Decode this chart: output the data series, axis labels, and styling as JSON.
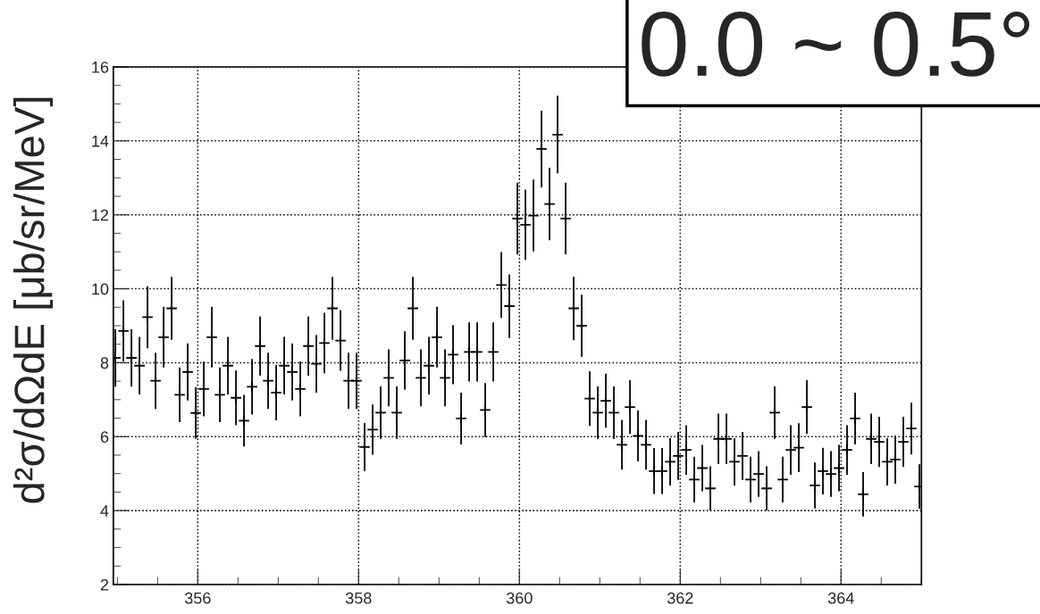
{
  "chart_data": {
    "type": "scatter",
    "ylabel": "d²σ/dΩdE [μb/sr/MeV]",
    "annotations": [
      "0.0 ~ 0.5°"
    ],
    "xlim": [
      354.95,
      365
    ],
    "xticks": [
      356,
      358,
      360,
      362,
      364
    ],
    "ylim": [
      2,
      16
    ],
    "yticks": [
      2,
      4,
      6,
      8,
      10,
      12,
      14,
      16
    ],
    "grid": true,
    "marker": "cross",
    "series": [
      {
        "color": "#000000",
        "x": [
          354.975,
          355.075,
          355.175,
          355.275,
          355.375,
          355.475,
          355.575,
          355.675,
          355.775,
          355.875,
          355.975,
          356.075,
          356.175,
          356.275,
          356.375,
          356.475,
          356.575,
          356.675,
          356.775,
          356.875,
          356.975,
          357.075,
          357.175,
          357.275,
          357.375,
          357.475,
          357.575,
          357.675,
          357.775,
          357.875,
          357.975,
          358.075,
          358.175,
          358.275,
          358.375,
          358.475,
          358.575,
          358.675,
          358.775,
          358.875,
          358.975,
          359.075,
          359.175,
          359.275,
          359.375,
          359.475,
          359.575,
          359.675,
          359.775,
          359.875,
          359.975,
          360.075,
          360.175,
          360.275,
          360.375,
          360.475,
          360.575,
          360.675,
          360.775,
          360.875,
          360.975,
          361.075,
          361.175,
          361.275,
          361.375,
          361.475,
          361.575,
          361.675,
          361.775,
          361.875,
          361.975,
          362.075,
          362.175,
          362.275,
          362.375,
          362.475,
          362.575,
          362.675,
          362.775,
          362.875,
          362.975,
          363.075,
          363.175,
          363.275,
          363.375,
          363.475,
          363.575,
          363.675,
          363.775,
          363.875,
          363.975,
          364.075,
          364.175,
          364.275,
          364.375,
          364.475,
          364.575,
          364.675,
          364.775,
          364.875,
          364.975
        ],
        "values": [
          8.13,
          8.86,
          8.13,
          7.92,
          9.23,
          7.51,
          8.69,
          9.47,
          7.13,
          7.75,
          6.64,
          7.29,
          8.69,
          7.13,
          7.92,
          7.05,
          6.43,
          7.35,
          8.45,
          7.51,
          7.19,
          7.92,
          7.75,
          7.29,
          8.45,
          7.97,
          8.53,
          9.47,
          8.6,
          7.51,
          7.51,
          5.72,
          6.19,
          6.65,
          7.59,
          6.65,
          8.06,
          9.47,
          7.59,
          7.92,
          8.69,
          7.59,
          8.22,
          6.49,
          8.29,
          8.29,
          6.72,
          8.29,
          10.1,
          9.53,
          11.9,
          11.73,
          11.98,
          13.78,
          12.29,
          14.17,
          11.9,
          9.47,
          9.0,
          7.03,
          6.65,
          6.97,
          6.65,
          5.78,
          6.8,
          6.02,
          5.78,
          5.07,
          5.07,
          5.32,
          5.48,
          5.64,
          4.84,
          5.15,
          4.6,
          5.94,
          5.94,
          5.32,
          5.48,
          4.84,
          4.99,
          4.6,
          6.65,
          4.84,
          5.64,
          5.7,
          6.8,
          4.68,
          5.07,
          4.99,
          5.15,
          5.64,
          6.49,
          4.44,
          5.94,
          5.86,
          5.32,
          5.38,
          5.86,
          6.22,
          4.65
        ],
        "errors": [
          0.78,
          0.83,
          0.78,
          0.78,
          0.84,
          0.76,
          0.82,
          0.85,
          0.74,
          0.77,
          0.7,
          0.74,
          0.82,
          0.74,
          0.78,
          0.74,
          0.7,
          0.75,
          0.8,
          0.76,
          0.75,
          0.78,
          0.77,
          0.74,
          0.8,
          0.78,
          0.82,
          0.85,
          0.82,
          0.76,
          0.76,
          0.65,
          0.68,
          0.71,
          0.77,
          0.71,
          0.79,
          0.85,
          0.77,
          0.78,
          0.82,
          0.77,
          0.8,
          0.7,
          0.8,
          0.8,
          0.73,
          0.8,
          0.89,
          0.86,
          0.97,
          0.95,
          0.97,
          1.04,
          0.98,
          1.05,
          0.97,
          0.86,
          0.84,
          0.74,
          0.71,
          0.73,
          0.71,
          0.67,
          0.73,
          0.69,
          0.67,
          0.62,
          0.62,
          0.64,
          0.65,
          0.67,
          0.62,
          0.63,
          0.6,
          0.68,
          0.68,
          0.64,
          0.65,
          0.62,
          0.62,
          0.6,
          0.71,
          0.62,
          0.67,
          0.66,
          0.73,
          0.62,
          0.63,
          0.62,
          0.63,
          0.67,
          0.7,
          0.6,
          0.68,
          0.68,
          0.64,
          0.65,
          0.68,
          0.7,
          0.6
        ]
      }
    ]
  }
}
